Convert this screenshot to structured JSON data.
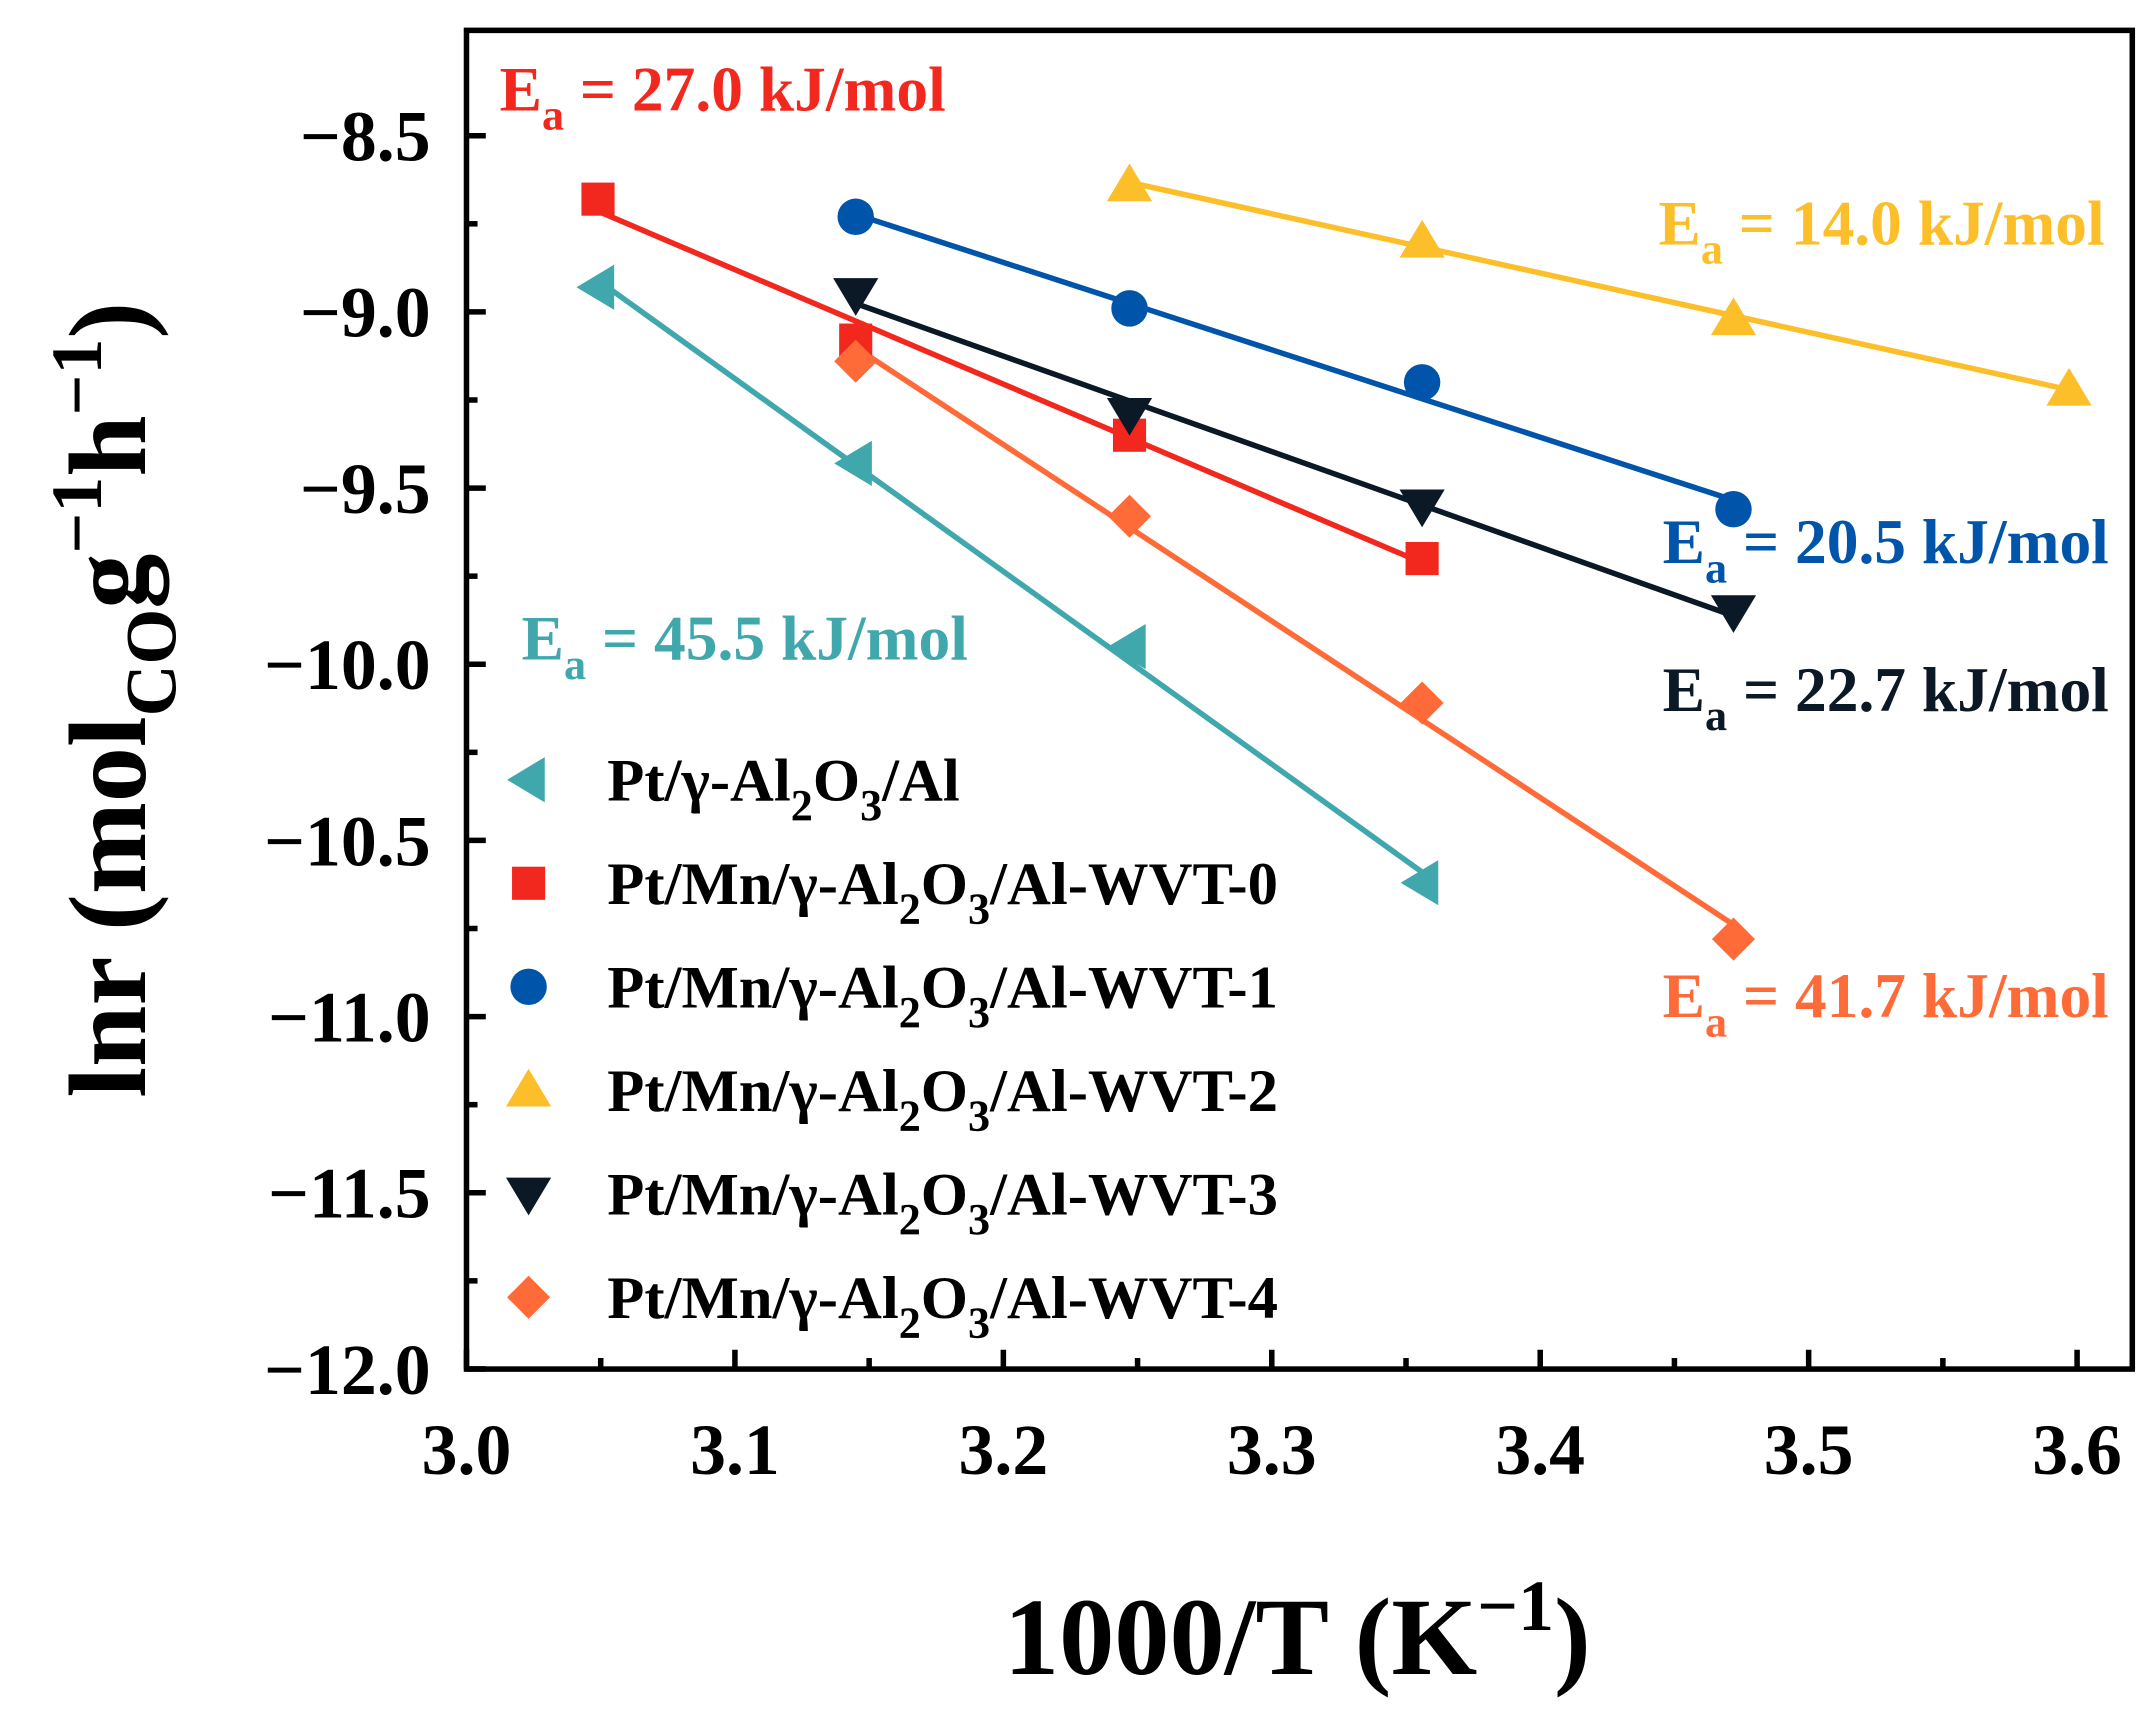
{
  "chart_data": {
    "type": "scatter",
    "title": "",
    "xlabel": {
      "main": "1000/T (K",
      "sup": "−1",
      "end": ")"
    },
    "ylabel": {
      "main": "lnr (mol",
      "sub": "CO",
      "g": "g",
      "sup1": "−1",
      "h": "h",
      "sup2": "−1",
      "end": ")"
    },
    "xlim": [
      3.0,
      3.62
    ],
    "ylim": [
      -12.0,
      -8.2
    ],
    "xticks": [
      "3.0",
      "3.1",
      "3.2",
      "3.3",
      "3.4",
      "3.5",
      "3.6"
    ],
    "yticks": [
      "−8.5",
      "−9.0",
      "−9.5",
      "−10.0",
      "−10.5",
      "−11.0",
      "−11.5",
      "−12.0"
    ],
    "ytick_values": [
      -8.5,
      -9.0,
      -9.5,
      -10.0,
      -10.5,
      -11.0,
      -11.5,
      -12.0
    ],
    "xtick_values": [
      3.0,
      3.1,
      3.2,
      3.3,
      3.4,
      3.5,
      3.6
    ],
    "grid": false,
    "legend_placement": "bottom-left",
    "series": [
      {
        "name": "Pt/γ-Al2O3/Al",
        "label": [
          {
            "t": "Pt/γ-Al"
          },
          {
            "sub": "2"
          },
          {
            "t": "O"
          },
          {
            "sub": "3"
          },
          {
            "t": "/Al"
          }
        ],
        "color": "#40a8ad",
        "marker": "triangle-left",
        "x": [
          3.049,
          3.145,
          3.247,
          3.356
        ],
        "y": [
          -8.93,
          -9.43,
          -9.95,
          -10.62
        ],
        "ea": {
          "E": "E",
          "sub": "a",
          "text": " = 45.5 kJ/mol"
        }
      },
      {
        "name": "Pt/Mn/γ-Al2O3/Al-WVT-0",
        "label": [
          {
            "t": "Pt/Mn/γ-Al"
          },
          {
            "sub": "2"
          },
          {
            "t": "O"
          },
          {
            "sub": "3"
          },
          {
            "t": "/Al-WVT-0"
          }
        ],
        "color": "#f2281e",
        "marker": "square",
        "x": [
          3.049,
          3.145,
          3.247,
          3.356
        ],
        "y": [
          -8.68,
          -9.08,
          -9.35,
          -9.7
        ],
        "ea": {
          "E": "E",
          "sub": "a",
          "text": " = 27.0 kJ/mol"
        }
      },
      {
        "name": "Pt/Mn/γ-Al2O3/Al-WVT-1",
        "label": [
          {
            "t": "Pt/Mn/γ-Al"
          },
          {
            "sub": "2"
          },
          {
            "t": "O"
          },
          {
            "sub": "3"
          },
          {
            "t": "/Al-WVT-1"
          }
        ],
        "color": "#0055aa",
        "marker": "circle",
        "x": [
          3.145,
          3.247,
          3.356,
          3.472
        ],
        "y": [
          -8.73,
          -8.99,
          -9.2,
          -9.56
        ],
        "ea": {
          "E": "E",
          "sub": "a",
          "text": " = 20.5 kJ/mol"
        }
      },
      {
        "name": "Pt/Mn/γ-Al2O3/Al-WVT-2",
        "label": [
          {
            "t": "Pt/Mn/γ-Al"
          },
          {
            "sub": "2"
          },
          {
            "t": "O"
          },
          {
            "sub": "3"
          },
          {
            "t": "/Al-WVT-2"
          }
        ],
        "color": "#fcbf2a",
        "marker": "triangle-up",
        "x": [
          3.247,
          3.356,
          3.472,
          3.597
        ],
        "y": [
          -8.64,
          -8.8,
          -9.02,
          -9.22
        ],
        "ea": {
          "E": "E",
          "sub": "a",
          "text": " = 14.0 kJ/mol"
        }
      },
      {
        "name": "Pt/Mn/γ-Al2O3/Al-WVT-3",
        "label": [
          {
            "t": "Pt/Mn/γ-Al"
          },
          {
            "sub": "2"
          },
          {
            "t": "O"
          },
          {
            "sub": "3"
          },
          {
            "t": "/Al-WVT-3"
          }
        ],
        "color": "#0b1826",
        "marker": "triangle-down",
        "x": [
          3.145,
          3.247,
          3.356,
          3.472
        ],
        "y": [
          -8.95,
          -9.29,
          -9.55,
          -9.85
        ],
        "ea": {
          "E": "E",
          "sub": "a",
          "text": " = 22.7 kJ/mol"
        }
      },
      {
        "name": "Pt/Mn/γ-Al2O3/Al-WVT-4",
        "label": [
          {
            "t": "Pt/Mn/γ-Al"
          },
          {
            "sub": "2"
          },
          {
            "t": "O"
          },
          {
            "sub": "3"
          },
          {
            "t": "/Al-WVT-4"
          }
        ],
        "color": "#ff6b38",
        "marker": "diamond",
        "x": [
          3.145,
          3.247,
          3.356,
          3.472
        ],
        "y": [
          -9.14,
          -9.58,
          -10.11,
          -10.78
        ],
        "ea": {
          "E": "E",
          "sub": "a",
          "text": " = 41.7 kJ/mol"
        }
      }
    ]
  }
}
